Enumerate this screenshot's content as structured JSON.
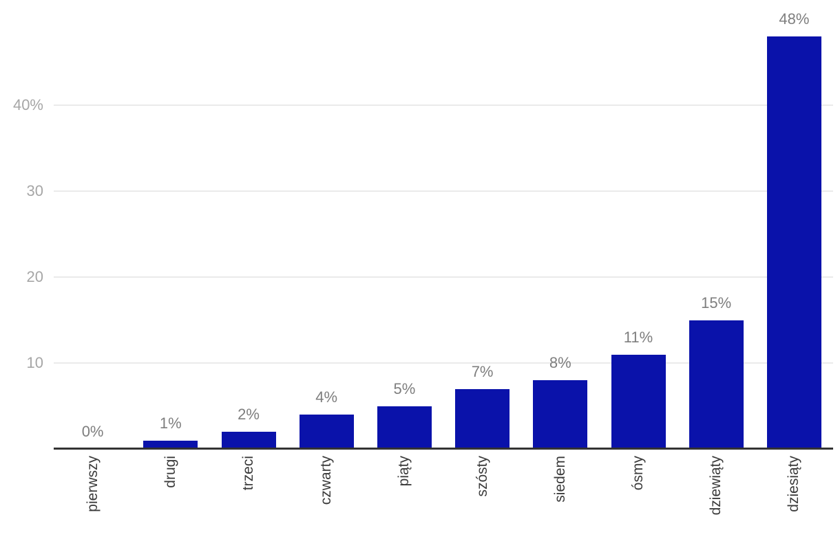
{
  "chart_data": {
    "type": "bar",
    "title": "",
    "xlabel": "",
    "ylabel": "",
    "legend": "none",
    "grid": "horizontal",
    "categories": [
      "pierwszy",
      "drugi",
      "trzeci",
      "czwarty",
      "piąty",
      "szósty",
      "siedem",
      "ósmy",
      "dziewiąty",
      "dziesiąty"
    ],
    "values": [
      0,
      1,
      2,
      4,
      5,
      7,
      8,
      11,
      15,
      48
    ],
    "data_labels": [
      "0%",
      "1%",
      "2%",
      "4%",
      "5%",
      "7%",
      "8%",
      "11%",
      "15%",
      "48%"
    ],
    "y_ticks": [
      {
        "value": 10,
        "label": "10"
      },
      {
        "value": 20,
        "label": "20"
      },
      {
        "value": 30,
        "label": "30"
      },
      {
        "value": 40,
        "label": "40%"
      }
    ],
    "ylim": [
      0,
      52
    ],
    "colors": {
      "bar": "#0A12AA",
      "grid_line": "#EAEAEA",
      "axis_line": "#333333",
      "y_tick_label": "#A6A6A6",
      "data_label": "#7E7E7E",
      "category_label": "#3B3B3B",
      "background": "#FFFFFF"
    }
  }
}
